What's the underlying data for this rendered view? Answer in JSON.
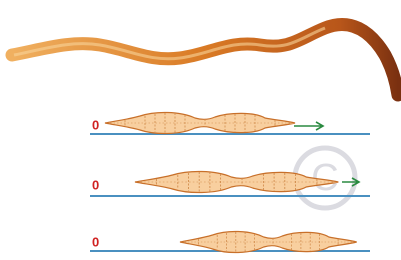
{
  "rows": [
    {
      "label": "0"
    },
    {
      "label": "0"
    },
    {
      "label": "0"
    }
  ]
}
